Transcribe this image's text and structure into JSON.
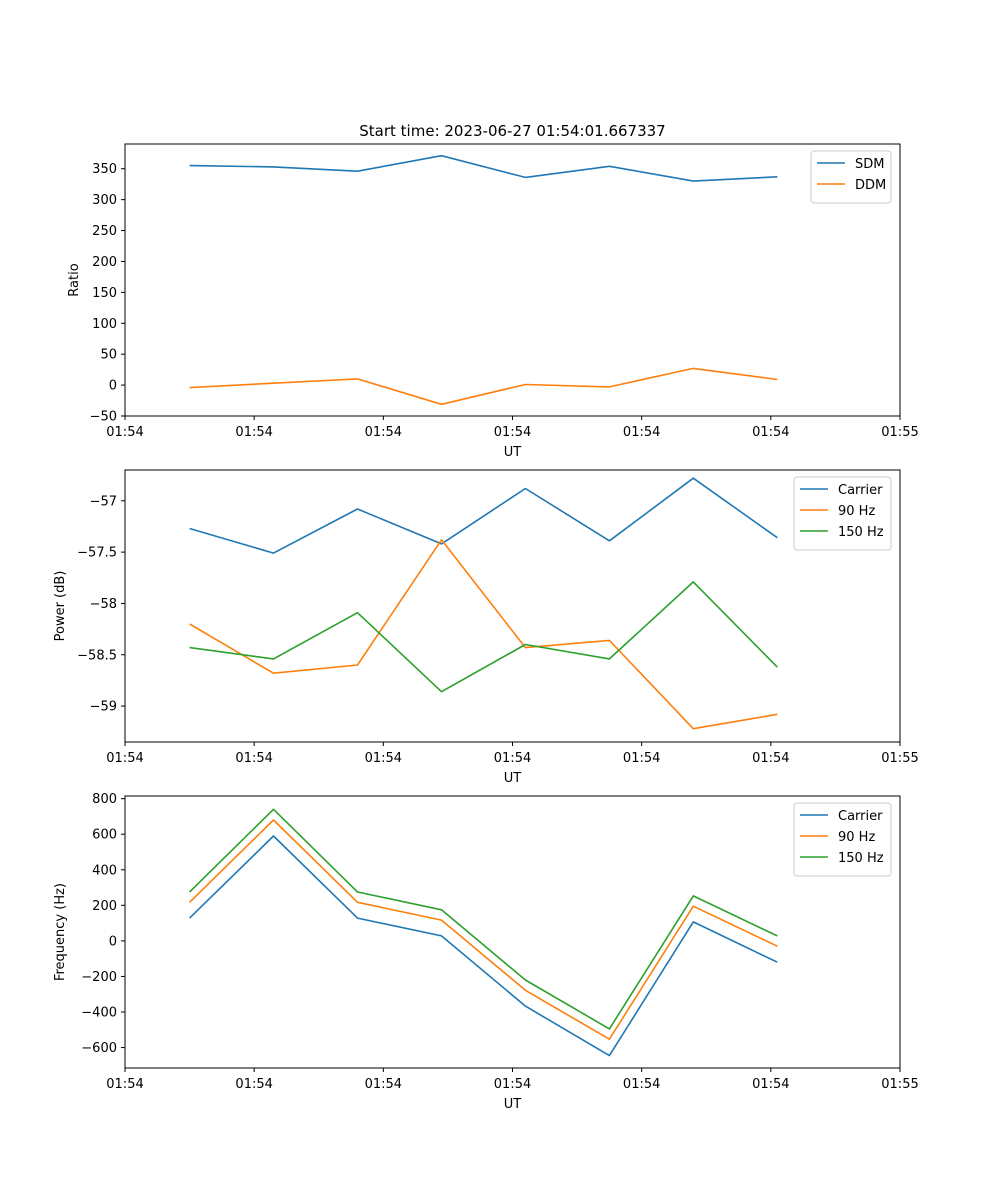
{
  "figure": {
    "title": "Start time: 2023-06-27 01:54:01.667337"
  },
  "colors": {
    "series1": "#1f77b4",
    "series2": "#ff7f0e",
    "series3": "#2ca02c"
  },
  "chart_data": [
    {
      "type": "line",
      "title": "Start time: 2023-06-27 01:54:01.667337",
      "xlabel": "UT",
      "ylabel": "Ratio",
      "x_tick_labels": [
        "01:54",
        "01:54",
        "01:54",
        "01:54",
        "01:54",
        "01:54",
        "01:55"
      ],
      "xlim": [
        0,
        12
      ],
      "ylim": [
        -50,
        390
      ],
      "y_ticks": [
        -50,
        0,
        50,
        100,
        150,
        200,
        250,
        300,
        350
      ],
      "legend_position": "top-right",
      "grid": false,
      "x": [
        1,
        2.3,
        3.6,
        4.9,
        6.2,
        7.5,
        8.8,
        10.1
      ],
      "series": [
        {
          "name": "SDM",
          "color": "#1f77b4",
          "values": [
            355,
            353,
            346,
            371,
            336,
            354,
            330,
            337
          ]
        },
        {
          "name": "DDM",
          "color": "#ff7f0e",
          "values": [
            -4,
            3,
            10,
            -31,
            1,
            -3,
            27,
            9
          ]
        }
      ]
    },
    {
      "type": "line",
      "xlabel": "UT",
      "ylabel": "Power (dB)",
      "x_tick_labels": [
        "01:54",
        "01:54",
        "01:54",
        "01:54",
        "01:54",
        "01:54",
        "01:55"
      ],
      "xlim": [
        0,
        12
      ],
      "ylim": [
        -59.35,
        -56.7
      ],
      "y_ticks": [
        -59.0,
        -58.5,
        -58.0,
        -57.5,
        -57.0
      ],
      "legend_position": "top-right",
      "grid": false,
      "x": [
        1,
        2.3,
        3.6,
        4.9,
        6.2,
        7.5,
        8.8,
        10.1
      ],
      "series": [
        {
          "name": "Carrier",
          "color": "#1f77b4",
          "values": [
            -57.27,
            -57.51,
            -57.08,
            -57.42,
            -56.88,
            -57.39,
            -56.78,
            -57.36
          ]
        },
        {
          "name": "90 Hz",
          "color": "#ff7f0e",
          "values": [
            -58.2,
            -58.68,
            -58.6,
            -57.38,
            -58.43,
            -58.36,
            -59.22,
            -59.08
          ]
        },
        {
          "name": "150 Hz",
          "color": "#2ca02c",
          "values": [
            -58.43,
            -58.54,
            -58.09,
            -58.86,
            -58.4,
            -58.54,
            -57.79,
            -58.62
          ]
        }
      ]
    },
    {
      "type": "line",
      "xlabel": "UT",
      "ylabel": "Frequency (Hz)",
      "x_tick_labels": [
        "01:54",
        "01:54",
        "01:54",
        "01:54",
        "01:54",
        "01:54",
        "01:55"
      ],
      "xlim": [
        0,
        12
      ],
      "ylim": [
        -715,
        815
      ],
      "y_ticks": [
        -600,
        -400,
        -200,
        0,
        200,
        400,
        600,
        800
      ],
      "legend_position": "top-right",
      "grid": false,
      "x": [
        1,
        2.3,
        3.6,
        4.9,
        6.2,
        7.5,
        8.8,
        10.1
      ],
      "series": [
        {
          "name": "Carrier",
          "color": "#1f77b4",
          "values": [
            128,
            590,
            128,
            28,
            -367,
            -645,
            107,
            -120
          ]
        },
        {
          "name": "90 Hz",
          "color": "#ff7f0e",
          "values": [
            217,
            680,
            217,
            117,
            -278,
            -553,
            195,
            -30
          ]
        },
        {
          "name": "150 Hz",
          "color": "#2ca02c",
          "values": [
            275,
            740,
            275,
            175,
            -220,
            -495,
            253,
            28
          ]
        }
      ]
    }
  ]
}
